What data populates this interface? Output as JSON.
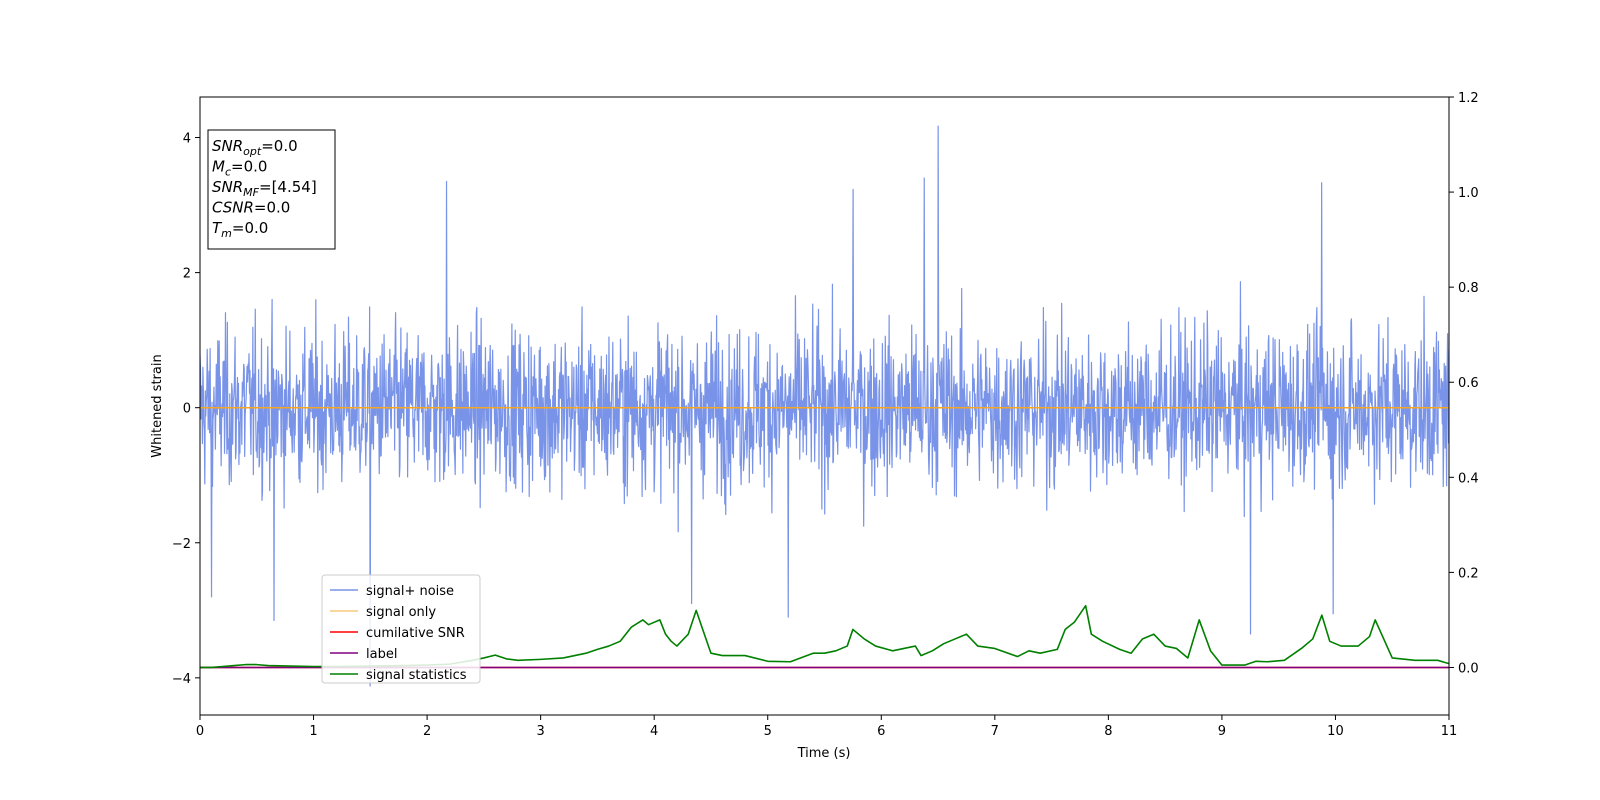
{
  "chart_data": {
    "type": "line",
    "xlabel": "Time (s)",
    "ylabel": "Whitened strain",
    "xlim": [
      0,
      11
    ],
    "ylim_left": [
      -4.55,
      4.6
    ],
    "ylim_right": [
      -0.1,
      1.2
    ],
    "x_ticks": [
      "0",
      "1",
      "2",
      "3",
      "4",
      "5",
      "6",
      "7",
      "8",
      "9",
      "10",
      "11"
    ],
    "y_left_ticks": [
      "−4",
      "−2",
      "0",
      "2",
      "4"
    ],
    "y_left_tick_values": [
      -4,
      -2,
      0,
      2,
      4
    ],
    "y_right_ticks": [
      "0.0",
      "0.2",
      "0.4",
      "0.6",
      "0.8",
      "1.0",
      "1.2"
    ],
    "y_right_tick_values": [
      0.0,
      0.2,
      0.4,
      0.6,
      0.8,
      1.0,
      1.2
    ],
    "grid": false,
    "legend_placement": "lower-left",
    "annotation": {
      "lines": [
        {
          "base": "SNR",
          "sub": "opt",
          "value": "=0.0"
        },
        {
          "base": "M",
          "sub": "c",
          "value": "=0.0"
        },
        {
          "base": "SNR",
          "sub": "MF",
          "value": "=[4.54]"
        },
        {
          "base": "CSNR",
          "sub": "",
          "value": "=0.0"
        },
        {
          "base": "T",
          "sub": "m",
          "value": "=0.0"
        }
      ]
    },
    "series": [
      {
        "name": "signal+ noise",
        "axis": "left",
        "color": "#7893e8",
        "description_values": "whitened noise approx. within ±2.5, peaks: t=6.5 y=4.17, t=1.5 y=-4.12",
        "envelope_typical": [
          -2.4,
          2.4
        ],
        "spikes": [
          {
            "x": 1.5,
            "y": -4.12
          },
          {
            "x": 6.5,
            "y": 4.17
          },
          {
            "x": 2.17,
            "y": 3.35
          },
          {
            "x": 9.88,
            "y": 3.33
          },
          {
            "x": 5.75,
            "y": 3.23
          },
          {
            "x": 6.38,
            "y": 3.4
          },
          {
            "x": 4.33,
            "y": -2.9
          },
          {
            "x": 5.18,
            "y": -3.1
          },
          {
            "x": 9.98,
            "y": -3.05
          },
          {
            "x": 0.65,
            "y": -3.15
          },
          {
            "x": 9.25,
            "y": -3.35
          },
          {
            "x": 0.1,
            "y": -2.8
          }
        ]
      },
      {
        "name": "signal only",
        "axis": "left",
        "color": "#f5a623",
        "x": [
          0,
          11
        ],
        "y": [
          0,
          0
        ]
      },
      {
        "name": "cumilative SNR",
        "axis": "right",
        "color": "#ff0000",
        "x": [
          0,
          11
        ],
        "y": [
          0,
          0
        ]
      },
      {
        "name": "label",
        "axis": "right",
        "color": "#800080",
        "x": [
          0,
          11
        ],
        "y": [
          0,
          0
        ]
      },
      {
        "name": "signal statistics",
        "axis": "right",
        "color": "#008000",
        "x": [
          0,
          0.1,
          0.2,
          0.3,
          0.4,
          0.5,
          0.6,
          0.8,
          1.0,
          1.2,
          1.5,
          1.8,
          2.0,
          2.2,
          2.4,
          2.5,
          2.6,
          2.7,
          2.8,
          3.0,
          3.2,
          3.3,
          3.4,
          3.5,
          3.6,
          3.7,
          3.8,
          3.9,
          3.95,
          4.05,
          4.1,
          4.15,
          4.2,
          4.3,
          4.37,
          4.42,
          4.5,
          4.6,
          4.8,
          5.0,
          5.2,
          5.4,
          5.5,
          5.6,
          5.7,
          5.75,
          5.85,
          5.95,
          6.1,
          6.3,
          6.35,
          6.45,
          6.55,
          6.65,
          6.75,
          6.85,
          7.0,
          7.2,
          7.3,
          7.4,
          7.55,
          7.62,
          7.7,
          7.8,
          7.85,
          7.95,
          8.1,
          8.2,
          8.3,
          8.4,
          8.5,
          8.6,
          8.7,
          8.8,
          8.9,
          9.0,
          9.2,
          9.3,
          9.4,
          9.55,
          9.7,
          9.8,
          9.88,
          9.95,
          10.05,
          10.2,
          10.3,
          10.35,
          10.5,
          10.7,
          10.9,
          11.0
        ],
        "y": [
          0.0,
          0.0,
          0.002,
          0.004,
          0.006,
          0.006,
          0.004,
          0.003,
          0.002,
          0.002,
          0.003,
          0.004,
          0.005,
          0.007,
          0.015,
          0.02,
          0.026,
          0.018,
          0.015,
          0.017,
          0.02,
          0.025,
          0.03,
          0.038,
          0.045,
          0.055,
          0.085,
          0.1,
          0.09,
          0.1,
          0.07,
          0.055,
          0.045,
          0.07,
          0.12,
          0.085,
          0.03,
          0.025,
          0.025,
          0.013,
          0.012,
          0.03,
          0.03,
          0.035,
          0.045,
          0.08,
          0.06,
          0.045,
          0.035,
          0.045,
          0.025,
          0.035,
          0.05,
          0.06,
          0.07,
          0.045,
          0.04,
          0.023,
          0.035,
          0.03,
          0.038,
          0.08,
          0.095,
          0.13,
          0.07,
          0.055,
          0.038,
          0.03,
          0.06,
          0.07,
          0.045,
          0.04,
          0.02,
          0.1,
          0.035,
          0.005,
          0.005,
          0.013,
          0.012,
          0.015,
          0.04,
          0.06,
          0.11,
          0.055,
          0.045,
          0.045,
          0.065,
          0.1,
          0.02,
          0.015,
          0.015,
          0.008
        ]
      }
    ]
  }
}
